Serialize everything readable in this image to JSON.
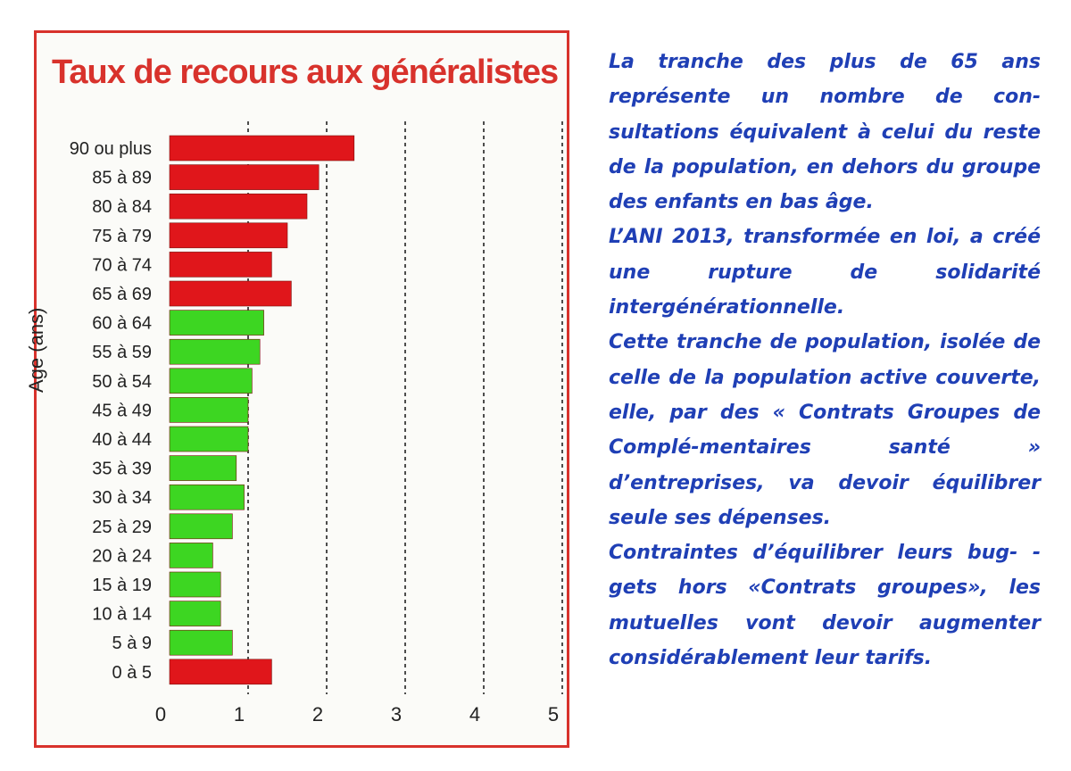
{
  "chart_data": {
    "type": "bar",
    "orientation": "horizontal",
    "title": "Taux de recours aux généralistes",
    "ylabel": "Age (ans)",
    "xlabel": "",
    "xlim": [
      0,
      5
    ],
    "xticks": [
      "0",
      "1",
      "2",
      "3",
      "4",
      "5"
    ],
    "grid": "vertical dotted lines at 1–5",
    "categories": [
      "90 ou plus",
      "85 à 89",
      "80 à 84",
      "75 à 79",
      "70 à 74",
      "65 à 69",
      "60 à 64",
      "55 à 59",
      "50 à 54",
      "45 à 49",
      "40 à 44",
      "35 à 39",
      "30 à 34",
      "25 à 29",
      "20 à 24",
      "15 à 19",
      "10 à 14",
      "5 à 9",
      "0 à 5"
    ],
    "values": [
      2.35,
      1.9,
      1.75,
      1.5,
      1.3,
      1.55,
      1.2,
      1.15,
      1.05,
      1.0,
      1.0,
      0.85,
      0.95,
      0.8,
      0.55,
      0.65,
      0.65,
      0.8,
      1.3
    ],
    "colors": [
      "#e0161b",
      "#e0161b",
      "#e0161b",
      "#e0161b",
      "#e0161b",
      "#e0161b",
      "#3dd622",
      "#3dd622",
      "#3dd622",
      "#3dd622",
      "#3dd622",
      "#3dd622",
      "#3dd622",
      "#3dd622",
      "#3dd622",
      "#3dd622",
      "#3dd622",
      "#3dd622",
      "#e0161b"
    ]
  },
  "text_panel": {
    "color": "#1f3fb5",
    "paragraphs": [
      "La tranche des plus de 65 ans représente un nombre de con-sultations équivalent à celui du reste de la population, en dehors du groupe des enfants en bas âge.",
      "L’ANI 2013, transformée en loi, a créé une rupture de solidarité intergénérationnelle.",
      "Cette tranche de population, isolée de celle de la population active couverte, elle, par des « Contrats Groupes de Complé-mentaires santé » d’entreprises, va devoir équilibrer seule ses dépenses.",
      "Contraintes d’équilibrer leurs bug- -gets hors «Contrats groupes», les mutuelles vont devoir augmenter considérablement leur tarifs."
    ]
  }
}
